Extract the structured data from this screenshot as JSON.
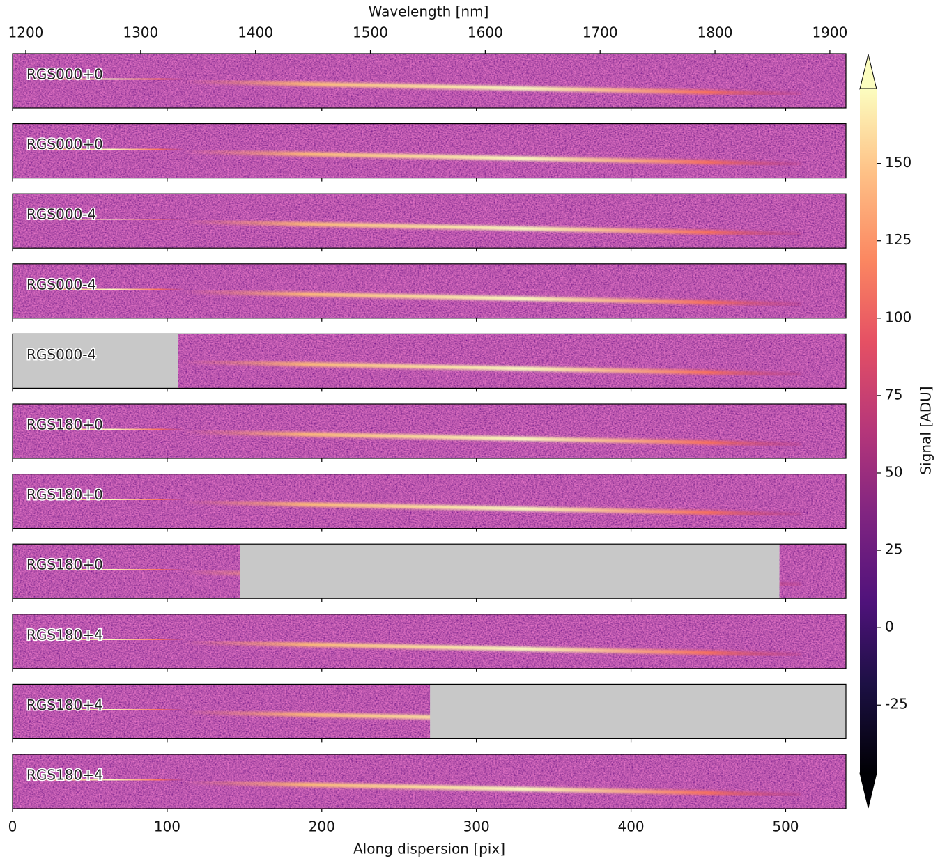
{
  "chart_data": {
    "type": "image",
    "x_label": "Along dispersion [pix]",
    "xlim": [
      0,
      539
    ],
    "xticks": [
      0,
      100,
      200,
      300,
      400,
      500
    ],
    "top_label": "Wavelength [nm]",
    "top_xlim": [
      1188.5,
      1914
    ],
    "top_xticks": [
      1200,
      1300,
      1400,
      1500,
      1600,
      1700,
      1800,
      1900
    ],
    "colorbar_label": "Signal [ADU]",
    "clim": [
      -47,
      174
    ],
    "colorbar_ticks": [
      -25,
      0,
      25,
      50,
      75,
      100,
      125,
      150
    ],
    "panels": [
      {
        "label": "RGS000+0"
      },
      {
        "label": "RGS000+0"
      },
      {
        "label": "RGS000-4"
      },
      {
        "label": "RGS000-4"
      },
      {
        "label": "RGS000-4",
        "masked": [
          [
            0,
            107
          ]
        ]
      },
      {
        "label": "RGS180+0"
      },
      {
        "label": "RGS180+0"
      },
      {
        "label": "RGS180+0",
        "masked": [
          [
            147,
            496
          ]
        ]
      },
      {
        "label": "RGS180+4"
      },
      {
        "label": "RGS180+4",
        "masked": [
          [
            270,
            539
          ]
        ]
      },
      {
        "label": "RGS180+4"
      }
    ]
  }
}
